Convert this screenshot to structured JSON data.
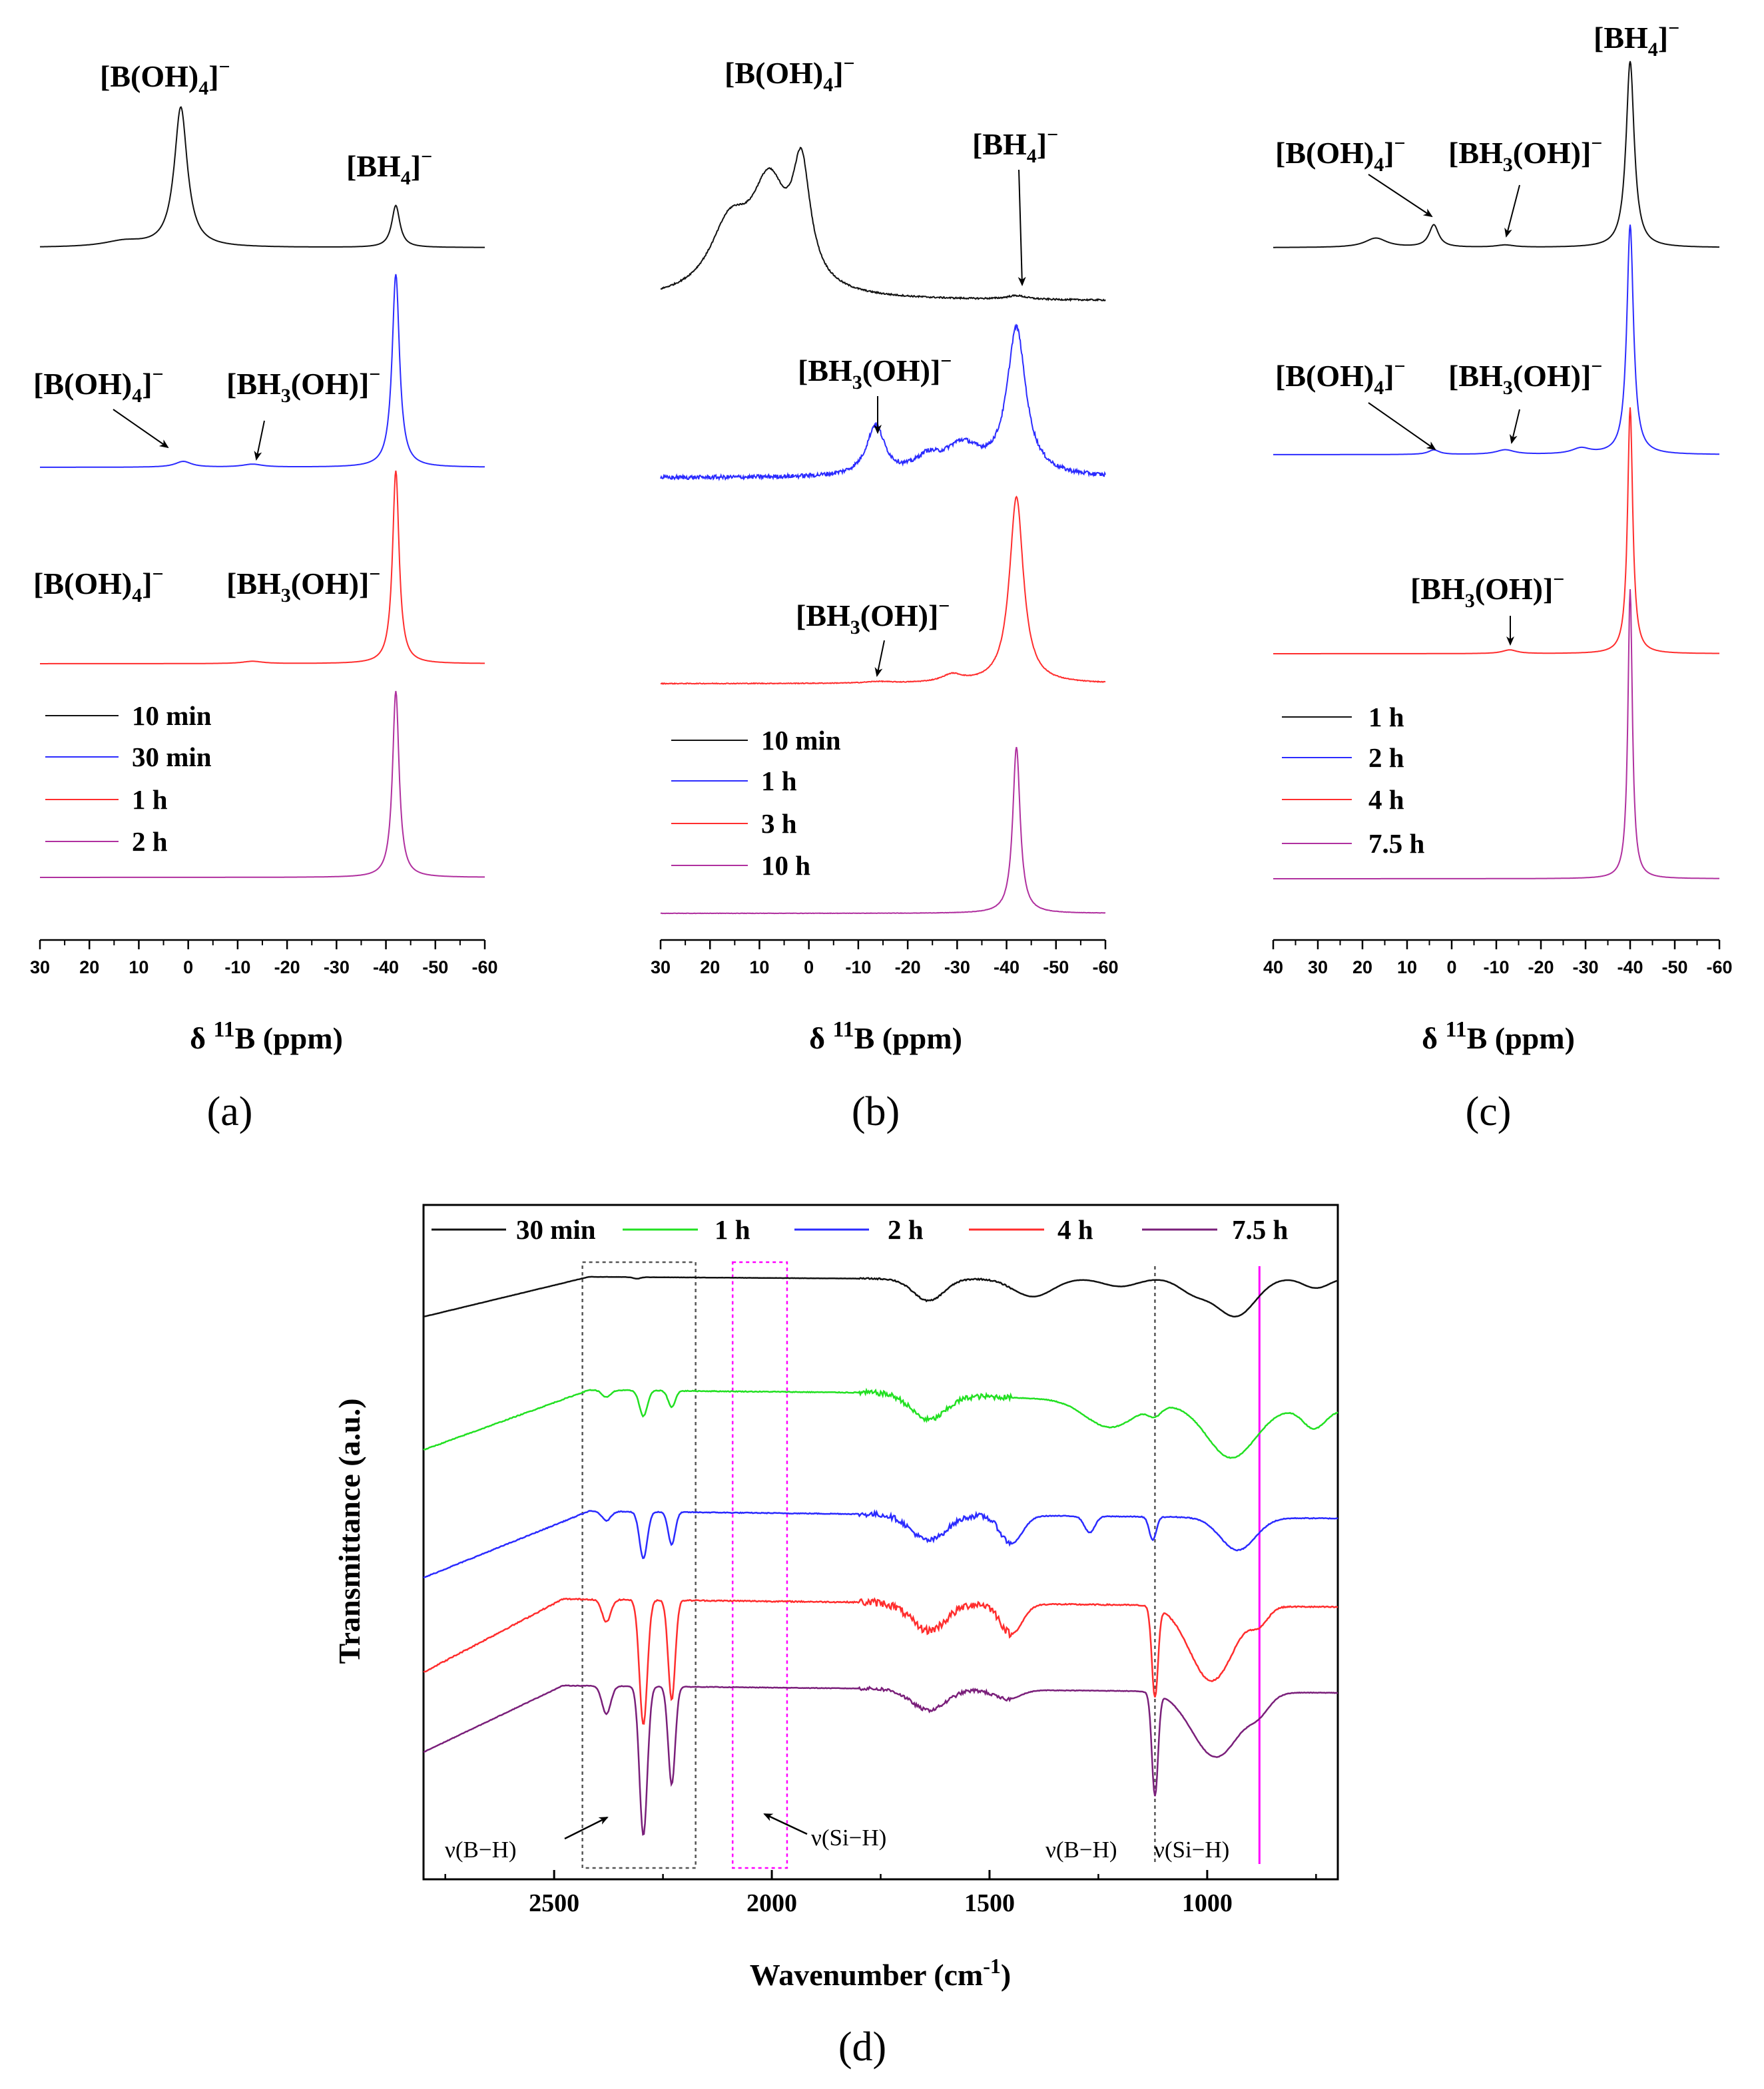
{
  "figure_labels": {
    "panel_a": "(a)",
    "panel_b": "(b)",
    "panel_c": "(c)",
    "panel_d": "(d)"
  },
  "colors": {
    "black": "#111111",
    "blue": "#2b2bff",
    "red": "#ff2d2d",
    "purple": "#7a1f7a",
    "green": "#22e022",
    "magenta": "#ff00ff",
    "guide_gray": "#555555"
  },
  "chart_data": [
    {
      "id": "a",
      "type": "line",
      "title": "",
      "xlabel_prefix": "δ ",
      "xlabel_sup": "11",
      "xlabel_main": "B (ppm)",
      "xlim": [
        30,
        -60
      ],
      "xticks": [
        30,
        20,
        10,
        0,
        -10,
        -20,
        -30,
        -40,
        -50,
        -60
      ],
      "tick_labels": [
        "30",
        "20",
        "10",
        "0",
        "-10",
        "-20",
        "-30",
        "-40",
        "-50",
        "-60"
      ],
      "series": [
        {
          "name": "10 min",
          "color": "#111111",
          "peaks": [
            {
              "center": 1.5,
              "width": 1.6,
              "height": 1.0
            },
            {
              "center": -42,
              "width": 1.0,
              "height": 0.3
            },
            {
              "center": 13,
              "width": 5,
              "height": 0.04
            }
          ],
          "noise": 0
        },
        {
          "name": "30 min",
          "color": "#2b2bff",
          "peaks": [
            {
              "center": -42,
              "width": 0.9,
              "height": 1.0
            },
            {
              "center": 1,
              "width": 2,
              "height": 0.03
            },
            {
              "center": -13,
              "width": 2.5,
              "height": 0.015
            }
          ],
          "noise": 0
        },
        {
          "name": "1 h",
          "color": "#ff2d2d",
          "peaks": [
            {
              "center": -42,
              "width": 0.8,
              "height": 1.0
            },
            {
              "center": -13,
              "width": 2.5,
              "height": 0.012
            }
          ],
          "noise": 0
        },
        {
          "name": "2 h",
          "color": "#b0309f",
          "peaks": [
            {
              "center": -42,
              "width": 0.8,
              "height": 1.0
            }
          ],
          "noise": 0
        }
      ],
      "annotations": [
        {
          "main": "[B(OH)",
          "sub": "4",
          "after": "]",
          "sup": "−"
        },
        {
          "main": "[BH",
          "sub": "4",
          "after": "]",
          "sup": "−"
        },
        {
          "main": "[B(OH)",
          "sub": "4",
          "after": "]",
          "sup": "−"
        },
        {
          "main": "[BH",
          "sub": "3",
          "after": "(OH)]",
          "sup": "−"
        },
        {
          "main": "[B(OH)",
          "sub": "4",
          "after": "]",
          "sup": "−"
        },
        {
          "main": "[BH",
          "sub": "3",
          "after": "(OH)]",
          "sup": "−"
        }
      ]
    },
    {
      "id": "b",
      "type": "line",
      "title": "",
      "xlabel_prefix": "δ ",
      "xlabel_sup": "11",
      "xlabel_main": "B (ppm)",
      "xlim": [
        30,
        -60
      ],
      "xticks": [
        30,
        20,
        10,
        0,
        -10,
        -20,
        -30,
        -40,
        -50,
        -60
      ],
      "tick_labels": [
        "30",
        "20",
        "10",
        "0",
        "-10",
        "-20",
        "-30",
        "-40",
        "-50",
        "-60"
      ],
      "series": [
        {
          "name": "10 min",
          "color": "#111111",
          "peaks": [
            {
              "center": 1.5,
              "width": 2.2,
              "height": 0.6
            },
            {
              "center": 8,
              "width": 4.5,
              "height": 0.55
            },
            {
              "center": 16,
              "width": 5,
              "height": 0.35
            },
            {
              "center": -42,
              "width": 2.5,
              "height": 0.02
            }
          ],
          "noise": 0.004
        },
        {
          "name": "1 h",
          "color": "#2b2bff",
          "peaks": [
            {
              "center": -42,
              "width": 2.3,
              "height": 1.0
            },
            {
              "center": -13.5,
              "width": 2.2,
              "height": 0.34
            },
            {
              "center": -31,
              "width": 4.5,
              "height": 0.2
            },
            {
              "center": -24,
              "width": 3,
              "height": 0.1
            }
          ],
          "noise": 0.014
        },
        {
          "name": "3 h",
          "color": "#ff2d2d",
          "peaks": [
            {
              "center": -42,
              "width": 1.7,
              "height": 1.0
            },
            {
              "center": -29,
              "width": 2.5,
              "height": 0.04
            },
            {
              "center": -14,
              "width": 3,
              "height": 0.008
            }
          ],
          "noise": 0.002
        },
        {
          "name": "10 h",
          "color": "#b0309f",
          "peaks": [
            {
              "center": -42,
              "width": 0.9,
              "height": 1.0
            }
          ],
          "noise": 0.001
        }
      ],
      "annotations": [
        {
          "main": "[B(OH)",
          "sub": "4",
          "after": "]",
          "sup": "−"
        },
        {
          "main": "[BH",
          "sub": "4",
          "after": "]",
          "sup": "−"
        },
        {
          "main": "[BH",
          "sub": "3",
          "after": "(OH)]",
          "sup": "−"
        },
        {
          "main": "[BH",
          "sub": "3",
          "after": "(OH)]",
          "sup": "−"
        }
      ]
    },
    {
      "id": "c",
      "type": "line",
      "title": "",
      "xlabel_prefix": "δ ",
      "xlabel_sup": "11",
      "xlabel_main": "B (ppm)",
      "xlim": [
        40,
        -60
      ],
      "xticks": [
        40,
        30,
        20,
        10,
        0,
        -10,
        -20,
        -30,
        -40,
        -50,
        -60
      ],
      "tick_labels": [
        "40",
        "30",
        "20",
        "10",
        "0",
        "-10",
        "-20",
        "-30",
        "-40",
        "-50",
        "-60"
      ],
      "series": [
        {
          "name": "1 h",
          "color": "#111111",
          "peaks": [
            {
              "center": -40,
              "width": 1.1,
              "height": 1.0
            },
            {
              "center": 4,
              "width": 1.3,
              "height": 0.12
            },
            {
              "center": 17,
              "width": 3,
              "height": 0.05
            },
            {
              "center": -12,
              "width": 2.5,
              "height": 0.012
            }
          ],
          "noise": 0
        },
        {
          "name": "2 h",
          "color": "#2b2bff",
          "peaks": [
            {
              "center": -40,
              "width": 0.9,
              "height": 1.0
            },
            {
              "center": 4,
              "width": 1.5,
              "height": 0.02
            },
            {
              "center": -12,
              "width": 2.5,
              "height": 0.02
            },
            {
              "center": -29,
              "width": 2.5,
              "height": 0.025
            }
          ],
          "noise": 0
        },
        {
          "name": "4 h",
          "color": "#ff2d2d",
          "peaks": [
            {
              "center": -40,
              "width": 0.7,
              "height": 1.0
            },
            {
              "center": -13,
              "width": 2,
              "height": 0.015
            }
          ],
          "noise": 0
        },
        {
          "name": "7.5 h",
          "color": "#b0309f",
          "peaks": [
            {
              "center": -40,
              "width": 0.6,
              "height": 1.0
            }
          ],
          "noise": 0
        }
      ],
      "annotations": [
        {
          "main": "[BH",
          "sub": "4",
          "after": "]",
          "sup": "−"
        },
        {
          "main": "[B(OH)",
          "sub": "4",
          "after": "]",
          "sup": "−"
        },
        {
          "main": "[BH",
          "sub": "3",
          "after": "(OH)]",
          "sup": "−"
        },
        {
          "main": "[B(OH)",
          "sub": "4",
          "after": "]",
          "sup": "−"
        },
        {
          "main": "[BH",
          "sub": "3",
          "after": "(OH)]",
          "sup": "−"
        },
        {
          "main": "[BH",
          "sub": "3",
          "after": "(OH)]",
          "sup": "−"
        }
      ]
    },
    {
      "id": "d",
      "type": "line",
      "title": "",
      "xlabel": "Wavenumber (cm",
      "xlabel_sup": "-1",
      "xlabel_end": ")",
      "ylabel": "Transmittance (a.u.)",
      "xlim": [
        2800,
        700
      ],
      "xticks": [
        2500,
        2000,
        1500,
        1000
      ],
      "tick_labels": [
        "2500",
        "2000",
        "1500",
        "1000"
      ],
      "series": [
        {
          "name": "30 min",
          "color": "#111111",
          "start": 0.0,
          "rise_end": 2420,
          "plateau_end": 1700,
          "tail": 0.1,
          "dips": [
            {
              "center": 1640,
              "width": 35,
              "depth": 0.55
            },
            {
              "center": 1400,
              "width": 45,
              "depth": 0.45
            },
            {
              "center": 1200,
              "width": 40,
              "depth": 0.2
            },
            {
              "center": 1030,
              "width": 35,
              "depth": 0.35
            },
            {
              "center": 935,
              "width": 45,
              "depth": 0.95
            },
            {
              "center": 750,
              "width": 30,
              "depth": 0.25
            },
            {
              "center": 2310,
              "width": 8,
              "depth": 0.04
            }
          ],
          "noise": 0.008
        },
        {
          "name": "1 h",
          "color": "#22e022",
          "start": 0.0,
          "rise_end": 2420,
          "plateau_end": 1700,
          "tail": -1.5,
          "dips": [
            {
              "center": 2295,
              "width": 9,
              "depth": 0.55
            },
            {
              "center": 2230,
              "width": 8,
              "depth": 0.35
            },
            {
              "center": 2380,
              "width": 10,
              "depth": 0.15
            },
            {
              "center": 1640,
              "width": 40,
              "depth": 0.55
            },
            {
              "center": 1225,
              "width": 55,
              "depth": 0.55
            },
            {
              "center": 945,
              "width": 55,
              "depth": 1.1
            },
            {
              "center": 755,
              "width": 25,
              "depth": 0.4
            },
            {
              "center": 1120,
              "width": 15,
              "depth": 0.2
            }
          ],
          "noise": 0.03
        },
        {
          "name": "2 h",
          "color": "#2b2bff",
          "start": 0.0,
          "rise_end": 2420,
          "plateau_end": 1700,
          "tail": -0.3,
          "dips": [
            {
              "center": 2295,
              "width": 9,
              "depth": 1.0
            },
            {
              "center": 2230,
              "width": 8,
              "depth": 0.7
            },
            {
              "center": 2380,
              "width": 10,
              "depth": 0.2
            },
            {
              "center": 1640,
              "width": 40,
              "depth": 0.55
            },
            {
              "center": 1450,
              "width": 25,
              "depth": 0.6
            },
            {
              "center": 1270,
              "width": 12,
              "depth": 0.35
            },
            {
              "center": 1125,
              "width": 8,
              "depth": 0.5
            },
            {
              "center": 930,
              "width": 40,
              "depth": 0.7
            }
          ],
          "noise": 0.03
        },
        {
          "name": "4 h",
          "color": "#ff2d2d",
          "start": 0.0,
          "rise_end": 2480,
          "plateau_end": 1700,
          "tail": -0.3,
          "dips": [
            {
              "center": 2295,
              "width": 9,
              "depth": 2.5
            },
            {
              "center": 2230,
              "width": 8,
              "depth": 2.0
            },
            {
              "center": 2380,
              "width": 10,
              "depth": 0.45
            },
            {
              "center": 1640,
              "width": 40,
              "depth": 0.55
            },
            {
              "center": 1450,
              "width": 25,
              "depth": 0.6
            },
            {
              "center": 1120,
              "width": 7,
              "depth": 1.8
            },
            {
              "center": 990,
              "width": 50,
              "depth": 1.5
            },
            {
              "center": 880,
              "width": 20,
              "depth": 0.3
            }
          ],
          "noise": 0.045
        },
        {
          "name": "7.5 h",
          "color": "#7a1f7a",
          "start": 0.0,
          "rise_end": 2480,
          "plateau_end": 1700,
          "tail": -0.3,
          "dips": [
            {
              "center": 2295,
              "width": 9,
              "depth": 3.2
            },
            {
              "center": 2230,
              "width": 8,
              "depth": 2.1
            },
            {
              "center": 2380,
              "width": 10,
              "depth": 0.6
            },
            {
              "center": 1640,
              "width": 40,
              "depth": 0.45
            },
            {
              "center": 1460,
              "width": 30,
              "depth": 0.2
            },
            {
              "center": 1120,
              "width": 7,
              "depth": 2.2
            },
            {
              "center": 980,
              "width": 55,
              "depth": 1.4
            },
            {
              "center": 880,
              "width": 25,
              "depth": 0.3
            }
          ],
          "noise": 0.02
        }
      ],
      "annotations": [
        "ν(B−H)",
        "ν(Si−H)",
        "ν(B−H)",
        "ν(Si−H)"
      ]
    }
  ]
}
